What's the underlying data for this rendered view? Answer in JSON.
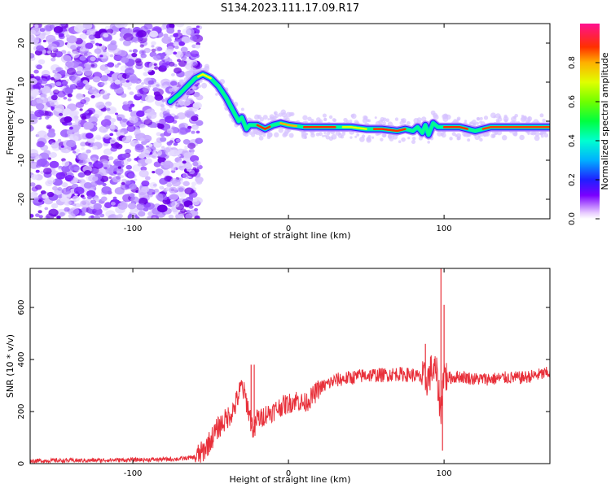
{
  "title": "S134.2023.111.17.09.R17",
  "chart_data": [
    {
      "type": "heatmap",
      "title": "S134.2023.111.17.09.R17",
      "xlabel": "Height of straight line (km)",
      "ylabel": "Frequency (Hz)",
      "xlim": [
        -166,
        168
      ],
      "ylim": [
        -25,
        25
      ],
      "x_ticks": [
        -100,
        0,
        100
      ],
      "y_ticks": [
        -20,
        -10,
        0,
        10,
        20
      ],
      "grid": false,
      "colorbar": {
        "label": "Normalized spectral amplitude",
        "range": [
          0,
          1
        ],
        "ticks": [
          0.0,
          0.2,
          0.4,
          0.6,
          0.8
        ],
        "colormap": "rainbow"
      },
      "noise_region_x": [
        -166,
        -65
      ],
      "ridge": {
        "x": [
          -76,
          -70,
          -65,
          -60,
          -55,
          -50,
          -45,
          -40,
          -36,
          -32,
          -30,
          -27,
          -25,
          -20,
          -15,
          -10,
          -5,
          0,
          10,
          20,
          30,
          40,
          50,
          60,
          70,
          75,
          80,
          83,
          86,
          88,
          90,
          93,
          96,
          100,
          110,
          115,
          120,
          130,
          140,
          150,
          160,
          168
        ],
        "y": [
          5,
          7,
          9,
          11,
          12,
          11,
          9,
          6,
          3,
          0,
          1,
          -2,
          -1,
          -1,
          -2,
          -1,
          -0.5,
          -1,
          -1.5,
          -1.5,
          -1.5,
          -1.5,
          -2,
          -2,
          -2.5,
          -2,
          -2.5,
          -1.5,
          -3,
          -1,
          -3.5,
          -0.5,
          -1.5,
          -1.5,
          -1.5,
          -2,
          -2.5,
          -1.5,
          -1.5,
          -1.5,
          -1.5,
          -1.5
        ]
      }
    },
    {
      "type": "line",
      "xlabel": "Height of straight line (km)",
      "ylabel": "SNR (10 * v/v)",
      "xlim": [
        -166,
        168
      ],
      "ylim": [
        0,
        750
      ],
      "x_ticks": [
        -100,
        0,
        100
      ],
      "y_ticks": [
        0,
        200,
        400,
        600
      ],
      "grid": false,
      "series": [
        {
          "color": "#e8303a",
          "x": [
            -166,
            -150,
            -130,
            -110,
            -90,
            -70,
            -60,
            -55,
            -50,
            -45,
            -40,
            -35,
            -30,
            -27,
            -24,
            -22,
            -20,
            -18,
            -15,
            -10,
            -5,
            0,
            5,
            10,
            15,
            20,
            30,
            40,
            50,
            60,
            70,
            80,
            85,
            88,
            90,
            92,
            95,
            97,
            98,
            99,
            100,
            102,
            105,
            110,
            120,
            130,
            140,
            150,
            160,
            168
          ],
          "y": [
            10,
            12,
            12,
            14,
            15,
            18,
            25,
            45,
            90,
            140,
            170,
            210,
            300,
            240,
            160,
            120,
            180,
            170,
            190,
            200,
            220,
            230,
            245,
            230,
            255,
            290,
            320,
            330,
            340,
            340,
            345,
            340,
            330,
            320,
            330,
            360,
            350,
            250,
            180,
            320,
            350,
            330,
            330,
            335,
            325,
            325,
            330,
            330,
            340,
            350
          ]
        }
      ],
      "annotations_spikes": [
        {
          "x": -24,
          "y": 380
        },
        {
          "x": -22,
          "y": 380
        },
        {
          "x": 88,
          "y": 460
        },
        {
          "x": 98,
          "y": 750
        },
        {
          "x": 99,
          "y": 50
        },
        {
          "x": 100,
          "y": 610
        }
      ]
    }
  ]
}
